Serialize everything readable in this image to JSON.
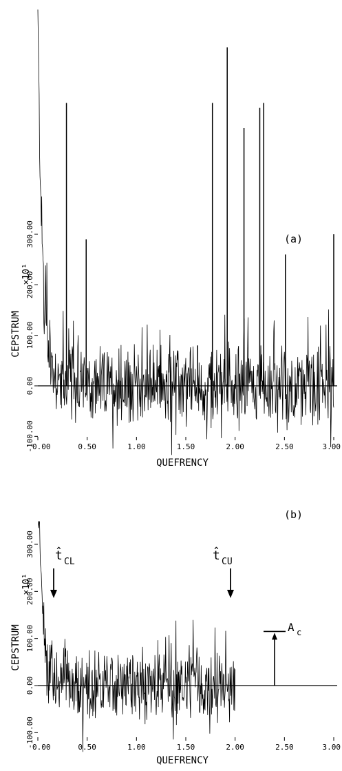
{
  "chart_data": [
    {
      "type": "line",
      "panel_label": "(a)",
      "xlabel": "QUEFRENCY",
      "ylabel": "CEPSTRUM",
      "y_multiplier": "×10¹",
      "xlim": [
        0,
        3
      ],
      "ylim": [
        -100,
        300
      ],
      "x_ticks": [
        0,
        0.5,
        1,
        1.5,
        2,
        2.5,
        3
      ],
      "x_tick_labels": [
        "0.00",
        "0.50",
        "1.00",
        "1.50",
        "2.00",
        "2.50",
        "3.00"
      ],
      "y_ticks": [
        -100,
        0,
        100,
        200,
        300
      ],
      "y_tick_labels": [
        "-100.00",
        "0.00",
        "100.00",
        "200.00",
        "300.00"
      ],
      "peaks": [
        {
          "x": 0.29,
          "y": 560
        },
        {
          "x": 0.49,
          "y": 290
        },
        {
          "x": 1.62,
          "y": 80
        },
        {
          "x": 1.77,
          "y": 560
        },
        {
          "x": 1.92,
          "y": 670
        },
        {
          "x": 2.09,
          "y": 510
        },
        {
          "x": 2.25,
          "y": 550
        },
        {
          "x": 2.29,
          "y": 560
        },
        {
          "x": 2.51,
          "y": 260
        },
        {
          "x": 3.0,
          "y": 300
        }
      ],
      "noise_range": [
        0,
        3
      ],
      "noise_amplitude": 60,
      "decay_start": 700
    },
    {
      "type": "line",
      "panel_label": "(b)",
      "xlabel": "QUEFRENCY",
      "ylabel": "CEPSTRUM",
      "y_multiplier": "×10¹",
      "xlim": [
        0,
        3
      ],
      "ylim": [
        -100,
        300
      ],
      "x_ticks": [
        0,
        0.5,
        1,
        1.5,
        2,
        2.5,
        3
      ],
      "x_tick_labels": [
        "0.00",
        "0.50",
        "1.00",
        "1.50",
        "2.00",
        "2.50",
        "3.00"
      ],
      "y_ticks": [
        -100,
        0,
        100,
        200,
        300
      ],
      "y_tick_labels": [
        "-100.00",
        "0.00",
        "100.00",
        "200.00",
        "300.00"
      ],
      "peaks": [],
      "noise_range": [
        0,
        2
      ],
      "noise_amplitude": 60,
      "decay_start": 420,
      "baseline_to": 3.0,
      "annotations": [
        {
          "label": "t̂",
          "sub": "CL",
          "x": 0.14
        },
        {
          "label": "t̂",
          "sub": "CU",
          "x": 1.97
        }
      ],
      "amplitude_marker": {
        "label": "A",
        "sub": "c",
        "x": 2.4,
        "y": 115
      }
    }
  ]
}
